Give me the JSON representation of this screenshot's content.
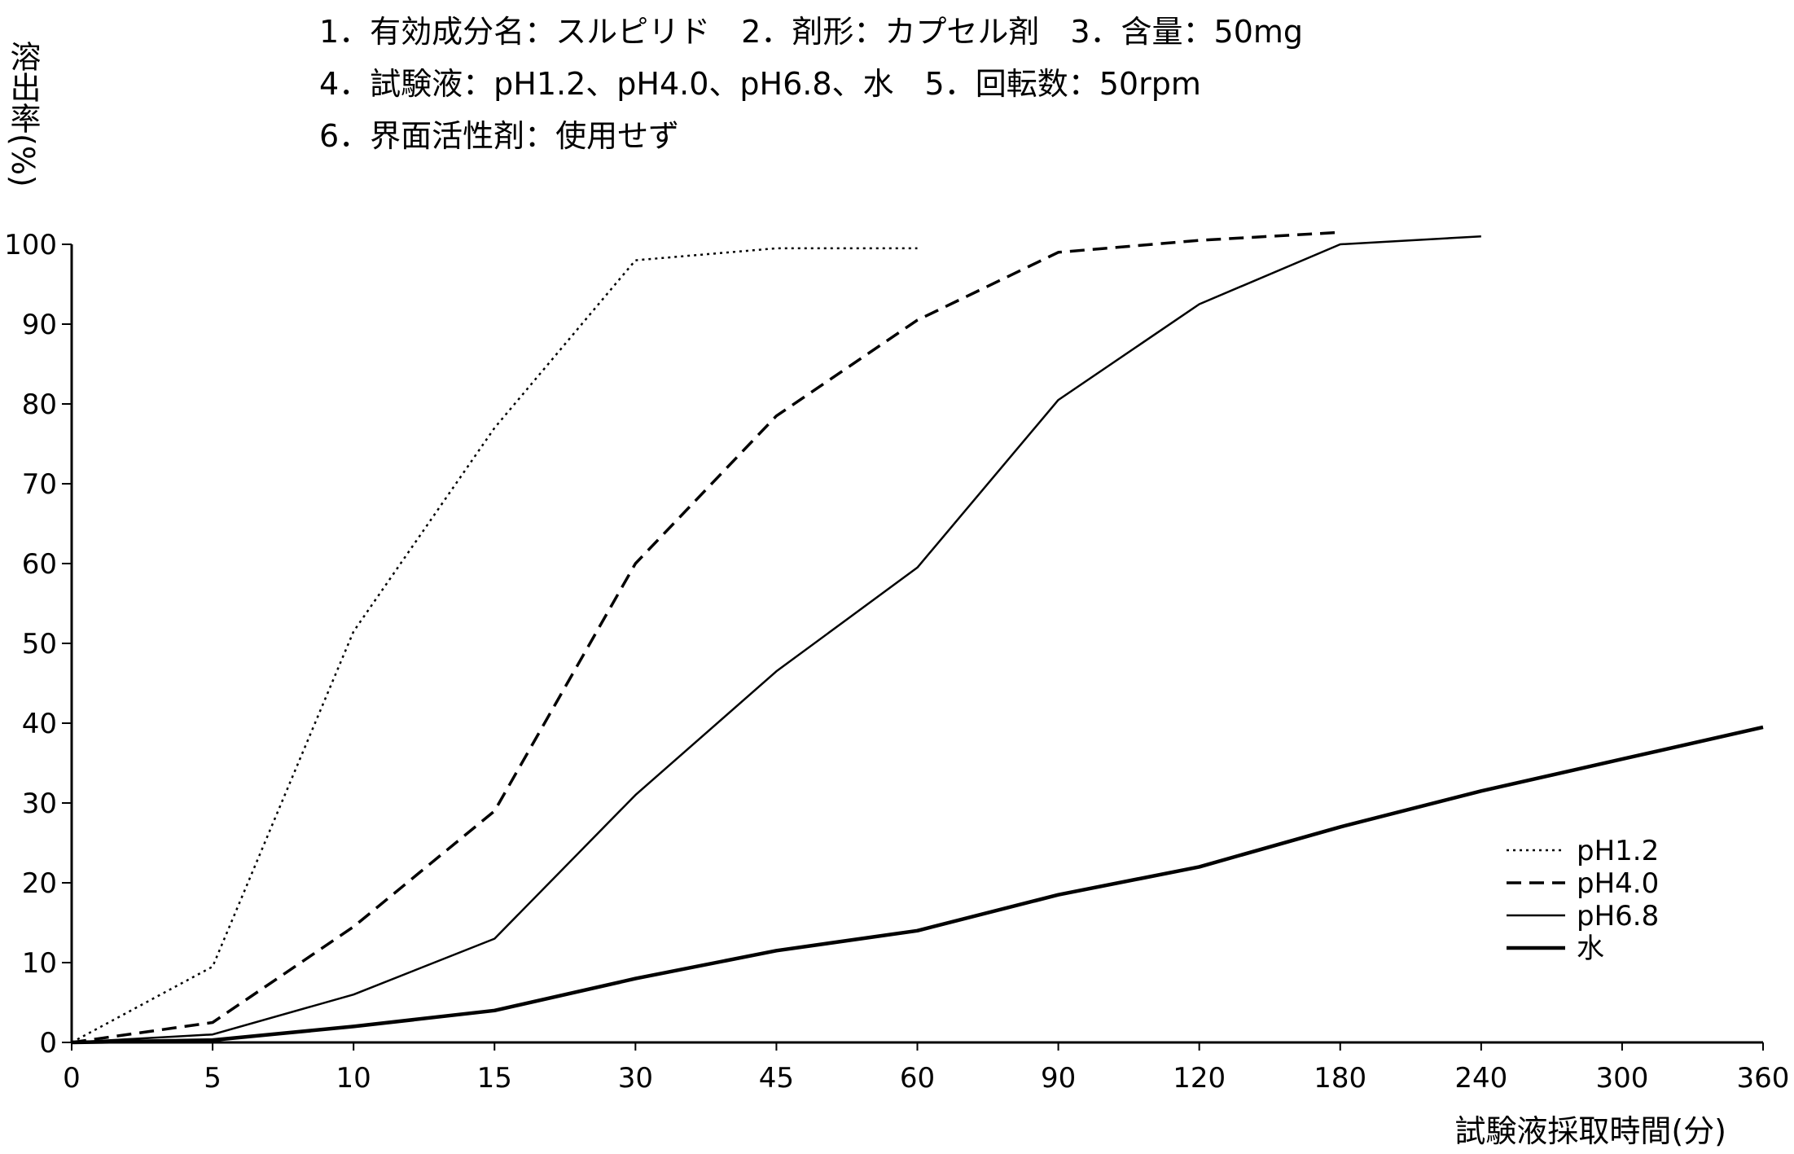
{
  "chart_data": {
    "type": "line",
    "title_lines": [
      "1．有効成分名：スルピリド　2．剤形：カプセル剤　3．含量：50mg",
      "4．試験液：pH1.2、pH4.0、pH6.8、水　5．回転数：50rpm",
      "6．界面活性剤：使用せず"
    ],
    "xlabel": "試験液採取時間(分)",
    "ylabel": "溶出率(%)",
    "x": [
      "0",
      "5",
      "10",
      "15",
      "30",
      "45",
      "60",
      "90",
      "120",
      "180",
      "240",
      "300",
      "360"
    ],
    "yticks": [
      "0",
      "10",
      "20",
      "30",
      "40",
      "50",
      "60",
      "70",
      "80",
      "90",
      "100"
    ],
    "ylim": [
      0,
      100
    ],
    "grid": false,
    "legend_position": "bottom-right",
    "series": [
      {
        "name": "pH1.2",
        "style": "dotted",
        "values": [
          0,
          9.5,
          51.5,
          77,
          98,
          99.5,
          99.5,
          null,
          null,
          null,
          null,
          null,
          null
        ]
      },
      {
        "name": "pH4.0",
        "style": "dashed",
        "values": [
          0,
          2.5,
          14.5,
          29,
          60,
          78.5,
          90.5,
          99,
          100.5,
          101.5,
          null,
          null,
          null
        ]
      },
      {
        "name": "pH6.8",
        "style": "solid",
        "values": [
          0,
          1,
          6,
          13,
          31,
          46.5,
          59.5,
          80.5,
          92.5,
          100,
          101,
          null,
          null
        ]
      },
      {
        "name": "水",
        "style": "solid-thick",
        "values": [
          0,
          0.3,
          2,
          4,
          8,
          11.5,
          14,
          18.5,
          22,
          27,
          31.5,
          35.5,
          39.5
        ]
      }
    ]
  }
}
